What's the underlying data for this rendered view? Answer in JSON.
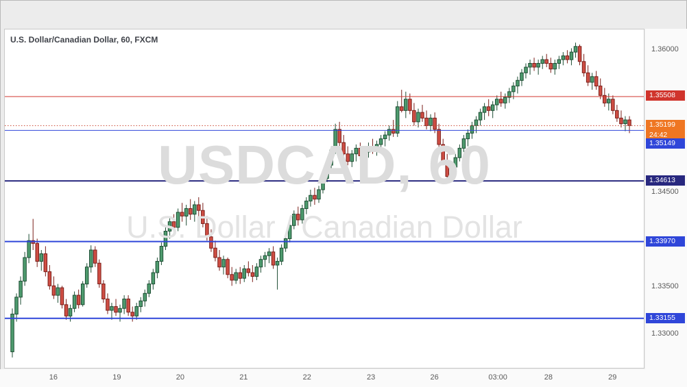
{
  "legend": {
    "text": "U.S. Dollar/Canadian Dollar, 60, FXCM"
  },
  "watermark": {
    "line1": "USDCAD, 60",
    "line2": "U.S. Dollar / Canadian Dollar"
  },
  "colors": {
    "up": "#4e9b6e",
    "up_border": "#1d4d33",
    "down": "#cf4e44",
    "down_border": "#7a1d18",
    "axis_text": "#5a5a5a"
  },
  "chart_data": {
    "type": "candlestick",
    "title": "U.S. Dollar/Canadian Dollar, 60, FXCM",
    "symbol": "USDCAD",
    "interval": "60",
    "exchange": "FXCM",
    "ylim": [
      1.3263,
      1.3622
    ],
    "grid": false,
    "y_ticks": [
      {
        "price": 1.36,
        "label": "1.36000"
      },
      {
        "price": 1.345,
        "label": "1.34500"
      },
      {
        "price": 1.335,
        "label": "1.33500"
      },
      {
        "price": 1.33,
        "label": "1.33000"
      }
    ],
    "x_labels": [
      {
        "pos": 0.077,
        "label": "16"
      },
      {
        "pos": 0.176,
        "label": "19"
      },
      {
        "pos": 0.275,
        "label": "20"
      },
      {
        "pos": 0.374,
        "label": "21"
      },
      {
        "pos": 0.473,
        "label": "22"
      },
      {
        "pos": 0.573,
        "label": "23"
      },
      {
        "pos": 0.672,
        "label": "26"
      },
      {
        "pos": 0.771,
        "label": "03:00"
      },
      {
        "pos": 0.85,
        "label": "28"
      },
      {
        "pos": 0.95,
        "label": "29"
      }
    ],
    "levels": [
      {
        "price": 1.35508,
        "label": "1.35508",
        "color": "#d0342c",
        "label_bg": "#d0342c",
        "style": "solid",
        "width": 1
      },
      {
        "price": 1.35199,
        "label": "1.35199",
        "color": "#cc4b37",
        "label_bg": "#ef7622",
        "style": "dotted",
        "width": 1,
        "countdown": "24:42"
      },
      {
        "price": 1.35149,
        "label": "1.35149",
        "color": "#2f46d9",
        "label_bg": "#2f46d9",
        "style": "solid",
        "width": 1,
        "label_dy": 20
      },
      {
        "price": 1.34613,
        "label": "1.34613",
        "color": "#28287f",
        "label_bg": "#28287f",
        "style": "solid",
        "width": 2
      },
      {
        "price": 1.3397,
        "label": "1.33970",
        "color": "#2f46d9",
        "label_bg": "#2f46d9",
        "style": "solid",
        "width": 2
      },
      {
        "price": 1.33155,
        "label": "1.33155",
        "color": "#2f46d9",
        "label_bg": "#2f46d9",
        "style": "solid",
        "width": 2
      }
    ],
    "last_price": "1.35199",
    "countdown": "24:42",
    "candles": [
      [
        1.328,
        1.3326,
        1.3274,
        1.332
      ],
      [
        1.332,
        1.3342,
        1.3312,
        1.3338
      ],
      [
        1.3338,
        1.336,
        1.333,
        1.3355
      ],
      [
        1.3355,
        1.3386,
        1.335,
        1.338
      ],
      [
        1.338,
        1.3405,
        1.3374,
        1.3398
      ],
      [
        1.3398,
        1.3421,
        1.3388,
        1.3395
      ],
      [
        1.3395,
        1.34,
        1.337,
        1.3376
      ],
      [
        1.3376,
        1.3388,
        1.3366,
        1.3384
      ],
      [
        1.3384,
        1.3392,
        1.336,
        1.3365
      ],
      [
        1.3365,
        1.3372,
        1.3346,
        1.335
      ],
      [
        1.335,
        1.336,
        1.3336,
        1.334
      ],
      [
        1.334,
        1.3352,
        1.3332,
        1.3348
      ],
      [
        1.3348,
        1.335,
        1.3326,
        1.333
      ],
      [
        1.333,
        1.3336,
        1.3314,
        1.3318
      ],
      [
        1.3318,
        1.333,
        1.3312,
        1.3326
      ],
      [
        1.3326,
        1.3344,
        1.3322,
        1.334
      ],
      [
        1.334,
        1.3346,
        1.3326,
        1.333
      ],
      [
        1.333,
        1.3355,
        1.3328,
        1.3352
      ],
      [
        1.3352,
        1.3374,
        1.3348,
        1.337
      ],
      [
        1.337,
        1.3393,
        1.3364,
        1.3388
      ],
      [
        1.3388,
        1.3392,
        1.337,
        1.3374
      ],
      [
        1.3374,
        1.3378,
        1.3348,
        1.3352
      ],
      [
        1.3352,
        1.3356,
        1.3332,
        1.3336
      ],
      [
        1.3336,
        1.3342,
        1.332,
        1.3324
      ],
      [
        1.3324,
        1.3332,
        1.3314,
        1.3328
      ],
      [
        1.3328,
        1.3336,
        1.3318,
        1.3322
      ],
      [
        1.3322,
        1.333,
        1.3312,
        1.3326
      ],
      [
        1.3326,
        1.334,
        1.332,
        1.3336
      ],
      [
        1.3336,
        1.334,
        1.3318,
        1.3322
      ],
      [
        1.3322,
        1.3328,
        1.3312,
        1.3318
      ],
      [
        1.3318,
        1.3332,
        1.3314,
        1.3328
      ],
      [
        1.3328,
        1.3338,
        1.3322,
        1.3334
      ],
      [
        1.3334,
        1.3346,
        1.3328,
        1.3342
      ],
      [
        1.3342,
        1.3356,
        1.3338,
        1.3352
      ],
      [
        1.3352,
        1.3368,
        1.3346,
        1.3364
      ],
      [
        1.3364,
        1.338,
        1.3358,
        1.3376
      ],
      [
        1.3376,
        1.3396,
        1.3372,
        1.3392
      ],
      [
        1.3392,
        1.3412,
        1.3388,
        1.3408
      ],
      [
        1.3408,
        1.3422,
        1.34,
        1.3418
      ],
      [
        1.3418,
        1.3426,
        1.3406,
        1.3412
      ],
      [
        1.3412,
        1.3432,
        1.3408,
        1.3428
      ],
      [
        1.3428,
        1.3438,
        1.3418,
        1.3424
      ],
      [
        1.3424,
        1.3436,
        1.3414,
        1.3432
      ],
      [
        1.3432,
        1.3442,
        1.342,
        1.3426
      ],
      [
        1.3426,
        1.344,
        1.3418,
        1.3436
      ],
      [
        1.3436,
        1.3444,
        1.3424,
        1.343
      ],
      [
        1.343,
        1.3438,
        1.3412,
        1.3416
      ],
      [
        1.3416,
        1.3424,
        1.3398,
        1.3402
      ],
      [
        1.3402,
        1.341,
        1.3386,
        1.339
      ],
      [
        1.339,
        1.3398,
        1.3376,
        1.338
      ],
      [
        1.338,
        1.3388,
        1.3366,
        1.337
      ],
      [
        1.337,
        1.3382,
        1.3362,
        1.3378
      ],
      [
        1.3378,
        1.338,
        1.3358,
        1.3362
      ],
      [
        1.3362,
        1.337,
        1.335,
        1.3356
      ],
      [
        1.3356,
        1.3368,
        1.3352,
        1.3364
      ],
      [
        1.3364,
        1.337,
        1.3352,
        1.3358
      ],
      [
        1.3358,
        1.3372,
        1.3354,
        1.3368
      ],
      [
        1.3368,
        1.3376,
        1.336,
        1.3364
      ],
      [
        1.3364,
        1.3372,
        1.3354,
        1.336
      ],
      [
        1.336,
        1.3374,
        1.3356,
        1.337
      ],
      [
        1.337,
        1.3382,
        1.3364,
        1.3378
      ],
      [
        1.3378,
        1.3386,
        1.337,
        1.3382
      ],
      [
        1.3382,
        1.339,
        1.3374,
        1.3386
      ],
      [
        1.3386,
        1.3392,
        1.3368,
        1.3372
      ],
      [
        1.3372,
        1.338,
        1.3346,
        1.3376
      ],
      [
        1.3376,
        1.3394,
        1.3372,
        1.339
      ],
      [
        1.339,
        1.3404,
        1.3386,
        1.34
      ],
      [
        1.34,
        1.3418,
        1.3396,
        1.3414
      ],
      [
        1.3414,
        1.343,
        1.341,
        1.3426
      ],
      [
        1.3426,
        1.3434,
        1.3414,
        1.342
      ],
      [
        1.342,
        1.3436,
        1.3416,
        1.3432
      ],
      [
        1.3432,
        1.3444,
        1.3426,
        1.344
      ],
      [
        1.344,
        1.3452,
        1.3434,
        1.3446
      ],
      [
        1.3446,
        1.3454,
        1.3436,
        1.3442
      ],
      [
        1.3442,
        1.3456,
        1.3438,
        1.3452
      ],
      [
        1.3452,
        1.3468,
        1.3448,
        1.3464
      ],
      [
        1.3464,
        1.3482,
        1.346,
        1.3478
      ],
      [
        1.3478,
        1.3498,
        1.3474,
        1.3494
      ],
      [
        1.3494,
        1.3522,
        1.349,
        1.3516
      ],
      [
        1.3516,
        1.3524,
        1.3496,
        1.3502
      ],
      [
        1.3502,
        1.351,
        1.3486,
        1.349
      ],
      [
        1.349,
        1.3498,
        1.3478,
        1.3482
      ],
      [
        1.3482,
        1.3494,
        1.3476,
        1.349
      ],
      [
        1.349,
        1.35,
        1.3482,
        1.3496
      ],
      [
        1.3496,
        1.3502,
        1.3484,
        1.3488
      ],
      [
        1.3488,
        1.3496,
        1.3478,
        1.3492
      ],
      [
        1.3492,
        1.3502,
        1.3486,
        1.3498
      ],
      [
        1.3498,
        1.3506,
        1.349,
        1.3494
      ],
      [
        1.3494,
        1.3504,
        1.3488,
        1.35
      ],
      [
        1.35,
        1.351,
        1.3494,
        1.3506
      ],
      [
        1.3506,
        1.3514,
        1.3498,
        1.351
      ],
      [
        1.351,
        1.352,
        1.3504,
        1.3516
      ],
      [
        1.3516,
        1.3526,
        1.3508,
        1.3512
      ],
      [
        1.3512,
        1.3546,
        1.3508,
        1.354
      ],
      [
        1.354,
        1.3558,
        1.3534,
        1.3536
      ],
      [
        1.3536,
        1.3556,
        1.3528,
        1.3548
      ],
      [
        1.3548,
        1.3554,
        1.3532,
        1.3536
      ],
      [
        1.3536,
        1.3544,
        1.352,
        1.3524
      ],
      [
        1.3524,
        1.3538,
        1.3518,
        1.3534
      ],
      [
        1.3534,
        1.3542,
        1.3524,
        1.3528
      ],
      [
        1.3528,
        1.3536,
        1.3516,
        1.352
      ],
      [
        1.352,
        1.3532,
        1.3514,
        1.3528
      ],
      [
        1.3528,
        1.3534,
        1.3512,
        1.3516
      ],
      [
        1.3516,
        1.3522,
        1.3496,
        1.35
      ],
      [
        1.35,
        1.3506,
        1.3478,
        1.3482
      ],
      [
        1.3482,
        1.349,
        1.3462,
        1.3466
      ],
      [
        1.3466,
        1.348,
        1.346,
        1.3476
      ],
      [
        1.3476,
        1.349,
        1.3472,
        1.3486
      ],
      [
        1.3486,
        1.35,
        1.3482,
        1.3496
      ],
      [
        1.3496,
        1.351,
        1.3492,
        1.3506
      ],
      [
        1.3506,
        1.3516,
        1.3498,
        1.3512
      ],
      [
        1.3512,
        1.3524,
        1.3506,
        1.352
      ],
      [
        1.352,
        1.353,
        1.3512,
        1.3526
      ],
      [
        1.3526,
        1.3538,
        1.352,
        1.3534
      ],
      [
        1.3534,
        1.3544,
        1.3526,
        1.354
      ],
      [
        1.354,
        1.3548,
        1.353,
        1.3536
      ],
      [
        1.3536,
        1.3546,
        1.3528,
        1.3542
      ],
      [
        1.3542,
        1.3552,
        1.3536,
        1.3548
      ],
      [
        1.3548,
        1.3556,
        1.354,
        1.3544
      ],
      [
        1.3544,
        1.3554,
        1.3538,
        1.355
      ],
      [
        1.355,
        1.356,
        1.3544,
        1.3556
      ],
      [
        1.3556,
        1.3566,
        1.3548,
        1.3562
      ],
      [
        1.3562,
        1.3572,
        1.3554,
        1.3568
      ],
      [
        1.3568,
        1.358,
        1.3562,
        1.3576
      ],
      [
        1.3576,
        1.3586,
        1.357,
        1.3582
      ],
      [
        1.3582,
        1.359,
        1.3574,
        1.3586
      ],
      [
        1.3586,
        1.3592,
        1.3578,
        1.3582
      ],
      [
        1.3582,
        1.359,
        1.3574,
        1.3586
      ],
      [
        1.3586,
        1.3594,
        1.358,
        1.359
      ],
      [
        1.359,
        1.3596,
        1.3582,
        1.3586
      ],
      [
        1.3586,
        1.3592,
        1.3576,
        1.358
      ],
      [
        1.358,
        1.359,
        1.3574,
        1.3586
      ],
      [
        1.3586,
        1.3594,
        1.358,
        1.359
      ],
      [
        1.359,
        1.3598,
        1.3584,
        1.3594
      ],
      [
        1.3594,
        1.36,
        1.3586,
        1.359
      ],
      [
        1.359,
        1.3602,
        1.3584,
        1.3598
      ],
      [
        1.3598,
        1.3608,
        1.3592,
        1.3604
      ],
      [
        1.3604,
        1.3606,
        1.3584,
        1.3588
      ],
      [
        1.3588,
        1.3596,
        1.3572,
        1.3576
      ],
      [
        1.3576,
        1.3584,
        1.3562,
        1.3566
      ],
      [
        1.3566,
        1.3576,
        1.3558,
        1.3572
      ],
      [
        1.3572,
        1.3578,
        1.3558,
        1.3562
      ],
      [
        1.3562,
        1.357,
        1.3548,
        1.3552
      ],
      [
        1.3552,
        1.356,
        1.354,
        1.3544
      ],
      [
        1.3544,
        1.3554,
        1.3536,
        1.3548
      ],
      [
        1.3548,
        1.3552,
        1.3532,
        1.3536
      ],
      [
        1.3536,
        1.3542,
        1.3524,
        1.3528
      ],
      [
        1.3528,
        1.3536,
        1.3518,
        1.3522
      ],
      [
        1.3522,
        1.353,
        1.3514,
        1.3526
      ],
      [
        1.3526,
        1.353,
        1.3512,
        1.352
      ]
    ]
  }
}
